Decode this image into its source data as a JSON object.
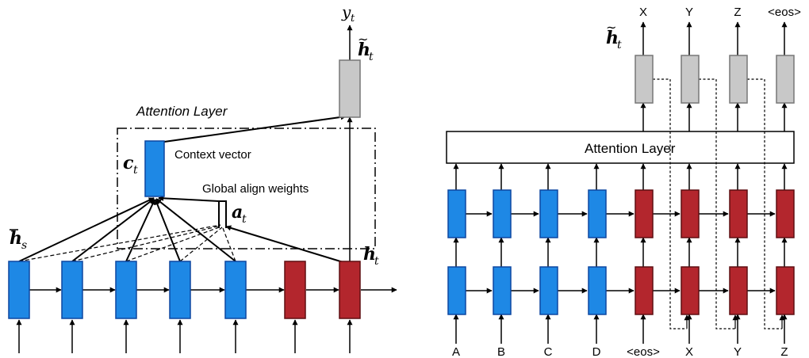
{
  "colors": {
    "encoder": "#1e88e5",
    "encoder_stroke": "#0d47a1",
    "decoder": "#b3262d",
    "decoder_stroke": "#5e0f12",
    "attentional": "#c8c8c8",
    "attentional_stroke": "#777777",
    "line": "#000000"
  },
  "left": {
    "attention_layer_label": "Attention Layer",
    "context_vector_label": "Context vector",
    "global_align_label": "Global align weights",
    "c_t": "c",
    "a_t": "a",
    "h_s": "h",
    "h_t": "h",
    "h_tilde_t": "h",
    "y_t": "y",
    "sub_t": "t",
    "sub_s": "s"
  },
  "right": {
    "attention_layer_label": "Attention Layer",
    "h_tilde_t": "h",
    "sub_t": "t",
    "inputs": [
      "A",
      "B",
      "C",
      "D",
      "<eos>",
      "X",
      "Y",
      "Z"
    ],
    "outputs": [
      "X",
      "Y",
      "Z",
      "<eos>"
    ]
  }
}
